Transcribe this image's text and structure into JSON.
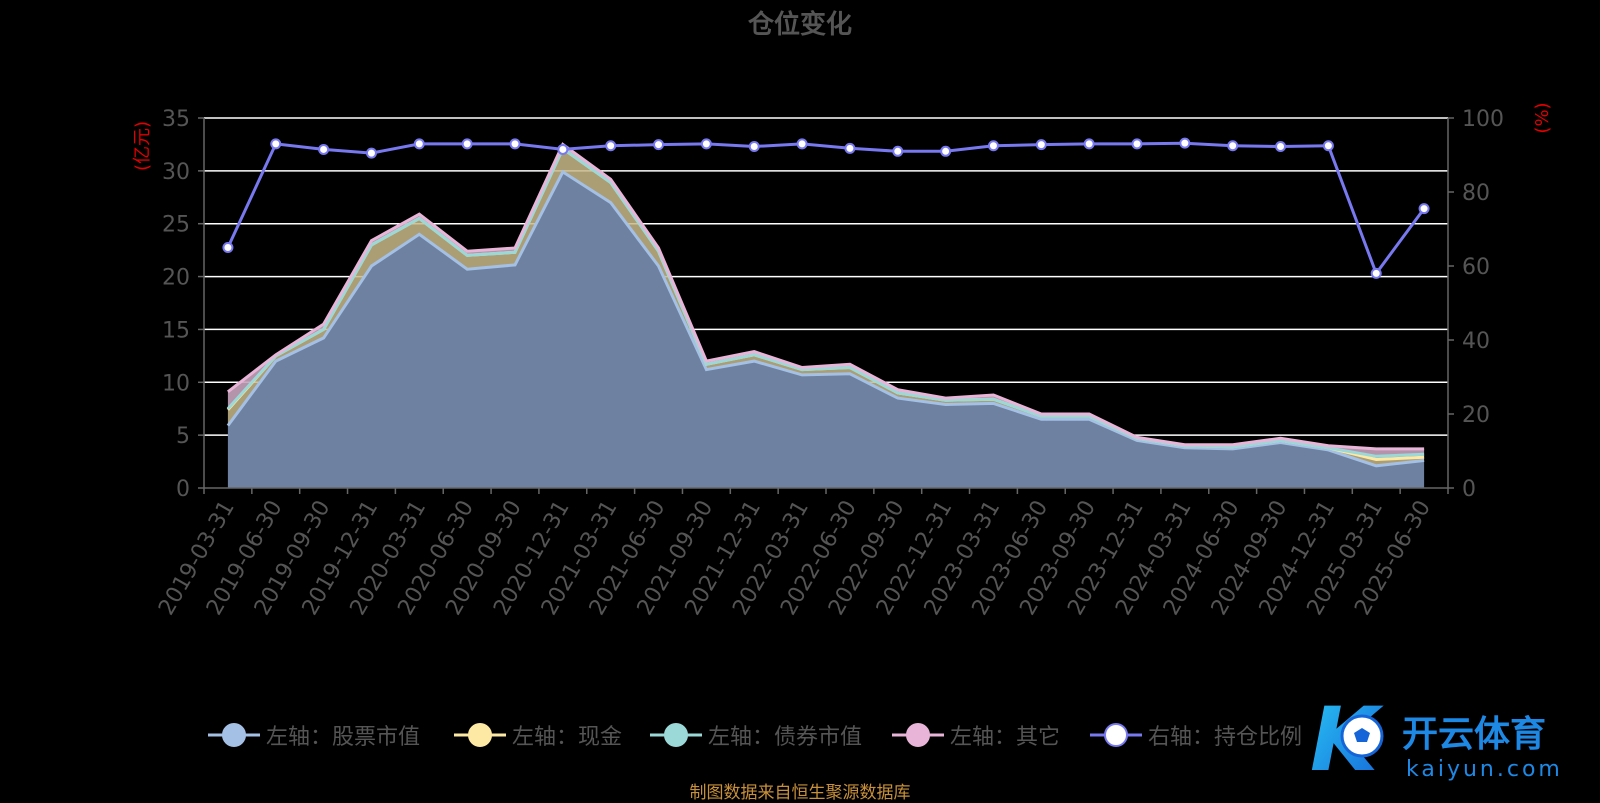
{
  "title": "仓位变化",
  "left_axis_label": "(亿元)",
  "right_axis_label": "(%)",
  "source_note": "制图数据来自恒生聚源数据库",
  "watermark": {
    "name": "开云体育",
    "url": "kaiyun.com",
    "letter": "K"
  },
  "legend": [
    {
      "label": "左轴：股票市值",
      "color": "#a4c0e4",
      "icon": "circle-filled"
    },
    {
      "label": "左轴：现金",
      "color": "#fde8a4",
      "icon": "circle-filled"
    },
    {
      "label": "左轴：债券市值",
      "color": "#9bd8d8",
      "icon": "circle-filled"
    },
    {
      "label": "左轴：其它",
      "color": "#e8b4d8",
      "icon": "circle-filled"
    },
    {
      "label": "右轴：持仓比例",
      "color": "#7878f0",
      "icon": "circle-white"
    }
  ],
  "chart_data": {
    "type": "area",
    "title": "仓位变化",
    "categories": [
      "2019-03-31",
      "2019-06-30",
      "2019-09-30",
      "2019-12-31",
      "2020-03-31",
      "2020-06-30",
      "2020-09-30",
      "2020-12-31",
      "2021-03-31",
      "2021-06-30",
      "2021-09-30",
      "2021-12-31",
      "2022-03-31",
      "2022-06-30",
      "2022-09-30",
      "2022-12-31",
      "2023-03-31",
      "2023-06-30",
      "2023-09-30",
      "2023-12-31",
      "2024-03-31",
      "2024-06-30",
      "2024-09-30",
      "2024-12-31",
      "2025-03-31",
      "2025-06-30"
    ],
    "stacked": true,
    "left_axis": {
      "label": "(亿元)",
      "ylim": [
        0,
        35
      ],
      "ticks": [
        0,
        5,
        10,
        15,
        20,
        25,
        30,
        35
      ]
    },
    "right_axis": {
      "label": "(%)",
      "ylim": [
        0,
        100
      ],
      "ticks": [
        0,
        20,
        40,
        60,
        80,
        100
      ]
    },
    "series": [
      {
        "name": "左轴：股票市值",
        "axis": "left",
        "kind": "stacked-area",
        "color": "#a4c0e4",
        "values": [
          5.9,
          12.0,
          14.2,
          21.0,
          24.0,
          20.7,
          21.1,
          29.9,
          27.0,
          21.0,
          11.2,
          12.0,
          10.7,
          10.8,
          8.5,
          7.9,
          8.0,
          6.5,
          6.5,
          4.5,
          3.8,
          3.7,
          4.3,
          3.6,
          2.1,
          2.6
        ]
      },
      {
        "name": "左轴：现金",
        "axis": "left",
        "kind": "stacked-area",
        "color": "#fde8a4",
        "values": [
          1.5,
          0.5,
          0.8,
          2.0,
          1.5,
          1.3,
          1.2,
          2.2,
          1.9,
          1.4,
          0.5,
          0.6,
          0.5,
          0.6,
          0.5,
          0.4,
          0.4,
          0.3,
          0.3,
          0.2,
          0.2,
          0.2,
          0.2,
          0.2,
          0.6,
          0.3
        ]
      },
      {
        "name": "左轴：债券市值",
        "axis": "left",
        "kind": "stacked-area",
        "color": "#9bd8d8",
        "values": [
          0.1,
          0.0,
          0.0,
          0.0,
          0.0,
          0.0,
          0.0,
          0.0,
          0.0,
          0.0,
          0.0,
          0.0,
          0.0,
          0.0,
          0.0,
          0.0,
          0.0,
          0.0,
          0.0,
          0.0,
          0.0,
          0.0,
          0.0,
          0.0,
          0.3,
          0.3
        ]
      },
      {
        "name": "左轴：其它",
        "axis": "left",
        "kind": "stacked-area",
        "color": "#e8b4d8",
        "values": [
          1.6,
          0.1,
          0.5,
          0.4,
          0.4,
          0.4,
          0.4,
          0.4,
          0.3,
          0.3,
          0.3,
          0.3,
          0.2,
          0.3,
          0.3,
          0.2,
          0.4,
          0.2,
          0.2,
          0.1,
          0.1,
          0.2,
          0.2,
          0.2,
          0.7,
          0.5
        ]
      },
      {
        "name": "右轴：持仓比例",
        "axis": "right",
        "kind": "line",
        "color": "#7878f0",
        "values": [
          65,
          93,
          91.5,
          90.5,
          93,
          93,
          93,
          91.5,
          92.5,
          92.8,
          93,
          92.3,
          93,
          91.8,
          91,
          91,
          92.5,
          92.8,
          93,
          93,
          93.2,
          92.5,
          92.3,
          92.5,
          58,
          75.5
        ]
      }
    ],
    "grid": true,
    "legend_position": "bottom"
  }
}
